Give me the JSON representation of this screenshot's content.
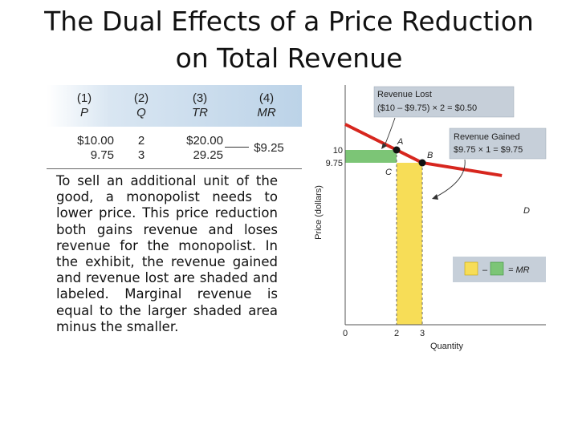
{
  "slide": {
    "title_line1": "The Dual Effects of a Price Reduction",
    "title_line2": "on Total Revenue"
  },
  "table": {
    "headers": [
      {
        "num": "(1)",
        "sym": "P"
      },
      {
        "num": "(2)",
        "sym": "Q"
      },
      {
        "num": "(3)",
        "sym": "TR"
      },
      {
        "num": "(4)",
        "sym": "MR"
      }
    ],
    "rows": [
      [
        "$10.00",
        "2",
        "$20.00"
      ],
      [
        "9.75",
        "3",
        "29.25"
      ]
    ],
    "mr_value": "$9.25"
  },
  "paragraph": "To sell an additional unit of the good, a monopolist needs to lower price. This price reduction both gains revenue and loses revenue for the monopolist. In the exhibit, the revenue gained and revenue lost are shaded and labeled. Marginal revenue is equal to the larger shaded area minus the smaller.",
  "chart_data": {
    "type": "area",
    "title": "",
    "xlabel": "Quantity",
    "ylabel": "Price (dollars)",
    "x_ticks": [
      "0",
      "2",
      "3"
    ],
    "y_ticks": [
      "10",
      "9.75"
    ],
    "demand_curve": {
      "label": "D",
      "points": [
        {
          "q": 0,
          "p": 10.5
        },
        {
          "q": 2,
          "p": 10
        },
        {
          "q": 3,
          "p": 9.75
        },
        {
          "q": 6.1,
          "p": 8.98
        }
      ]
    },
    "points": [
      {
        "label": "A",
        "q": 2,
        "p": 10
      },
      {
        "label": "B",
        "q": 3,
        "p": 9.75
      },
      {
        "label": "C",
        "q": 2,
        "p": 9.75
      }
    ],
    "revenue_lost": {
      "q0": 0,
      "q1": 2,
      "p0": 9.75,
      "p1": 10,
      "line1": "Revenue Lost",
      "line2": "($10 – $9.75) × 2 = $0.50",
      "color": "#7cc576"
    },
    "revenue_gained": {
      "q0": 2,
      "q1": 3,
      "p0": 0,
      "p1": 9.75,
      "line1": "Revenue Gained",
      "line2": "$9.75 × 1 = $9.75",
      "color": "#f7dd57"
    },
    "legend": {
      "minus": "–",
      "equals": "= MR"
    },
    "colors": {
      "curve": "#d7261e",
      "lost": "#7cc576",
      "gained": "#f7dd57",
      "annotation_bg": "#c6cfd9"
    }
  }
}
